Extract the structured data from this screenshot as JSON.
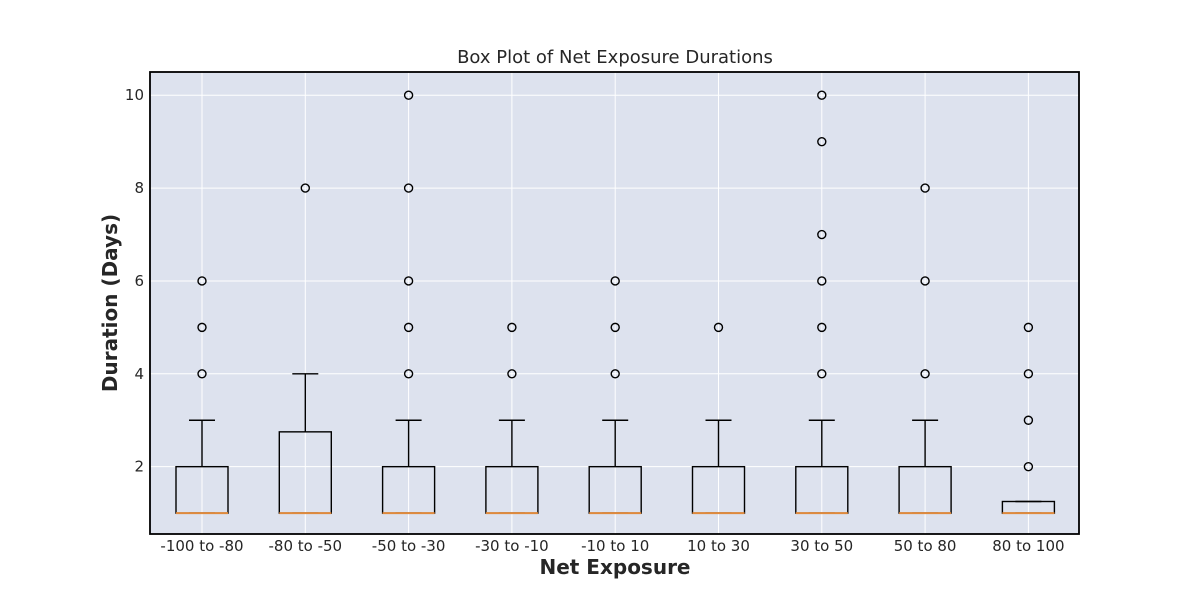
{
  "chart_data": {
    "type": "box",
    "title": "Box Plot of Net Exposure Durations",
    "xlabel": "Net Exposure",
    "ylabel": "Duration (Days)",
    "ylim": [
      0.55,
      10.5
    ],
    "yticks": [
      2,
      4,
      6,
      8,
      10
    ],
    "grid": true,
    "background_color": "#dde2ee",
    "median_color": "#e08a3c",
    "categories": [
      "-100 to -80",
      "-80 to -50",
      "-50 to -30",
      "-30 to -10",
      "-10 to 10",
      "10 to 30",
      "30 to 50",
      "50 to 80",
      "80 to 100"
    ],
    "boxes": [
      {
        "q1": 1,
        "median": 1,
        "q3": 2,
        "whisker_low": 1,
        "whisker_high": 3,
        "fliers": [
          4,
          5,
          6
        ]
      },
      {
        "q1": 1,
        "median": 1,
        "q3": 2.75,
        "whisker_low": 1,
        "whisker_high": 4,
        "fliers": [
          8
        ]
      },
      {
        "q1": 1,
        "median": 1,
        "q3": 2,
        "whisker_low": 1,
        "whisker_high": 3,
        "fliers": [
          4,
          5,
          6,
          8,
          10
        ]
      },
      {
        "q1": 1,
        "median": 1,
        "q3": 2,
        "whisker_low": 1,
        "whisker_high": 3,
        "fliers": [
          4,
          5
        ]
      },
      {
        "q1": 1,
        "median": 1,
        "q3": 2,
        "whisker_low": 1,
        "whisker_high": 3,
        "fliers": [
          4,
          5,
          6
        ]
      },
      {
        "q1": 1,
        "median": 1,
        "q3": 2,
        "whisker_low": 1,
        "whisker_high": 3,
        "fliers": [
          5
        ]
      },
      {
        "q1": 1,
        "median": 1,
        "q3": 2,
        "whisker_low": 1,
        "whisker_high": 3,
        "fliers": [
          4,
          5,
          6,
          7,
          9,
          10
        ]
      },
      {
        "q1": 1,
        "median": 1,
        "q3": 2,
        "whisker_low": 1,
        "whisker_high": 3,
        "fliers": [
          4,
          6,
          8
        ]
      },
      {
        "q1": 1,
        "median": 1,
        "q3": 1.25,
        "whisker_low": 1,
        "whisker_high": 1.25,
        "fliers": [
          2,
          3,
          4,
          5
        ]
      }
    ]
  }
}
